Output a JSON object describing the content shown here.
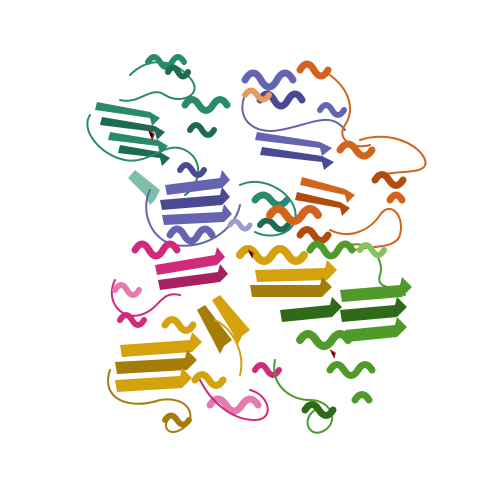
{
  "scene": {
    "kind": "protein-cartoon",
    "background": "#ffffff",
    "chains": [
      {
        "id": "teal",
        "color": "#2a8a6e",
        "dark": "#1d6b53",
        "light": "#7fbfa8"
      },
      {
        "id": "slate",
        "color": "#6464b0",
        "dark": "#4a4a93",
        "light": "#9a9ad0"
      },
      {
        "id": "orange",
        "color": "#d2641c",
        "dark": "#b04d0e",
        "light": "#e79a5f"
      },
      {
        "id": "magenta",
        "color": "#d02a7c",
        "dark": "#a81f62",
        "light": "#e47ab0"
      },
      {
        "id": "gold",
        "color": "#d4a20c",
        "dark": "#a57d08",
        "light": "#e8c55a"
      },
      {
        "id": "green",
        "color": "#4f9a2a",
        "dark": "#2f6a18",
        "light": "#86c25e"
      }
    ]
  }
}
